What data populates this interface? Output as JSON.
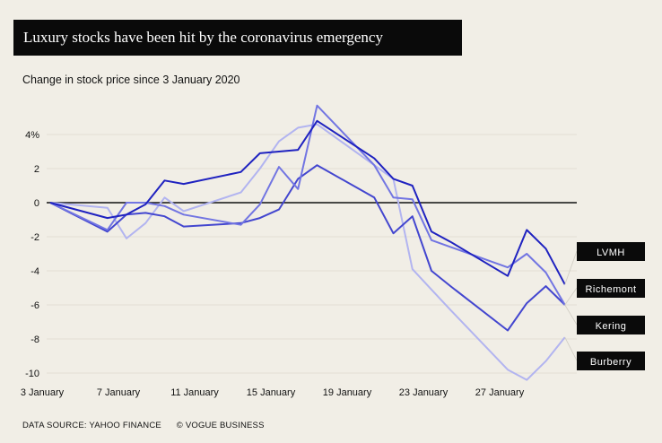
{
  "chart_data": {
    "type": "line",
    "title": "Luxury stocks have been hit by the coronavirus emergency",
    "subtitle": "Change in stock price since 3 January 2020",
    "x": [
      3,
      6,
      7,
      8,
      9,
      10,
      13,
      14,
      15,
      16,
      17,
      20,
      21,
      22,
      23,
      24,
      27,
      28,
      29,
      30
    ],
    "x_unit": "January 2020",
    "xticks": [
      3,
      7,
      11,
      15,
      19,
      23,
      27
    ],
    "xtick_labels": [
      "3 January",
      "7 January",
      "11 January",
      "15 January",
      "19 January",
      "23 January",
      "27 January"
    ],
    "yticks": [
      4,
      2,
      0,
      -2,
      -4,
      -6,
      -8,
      -10
    ],
    "ytick_labels": [
      "4%",
      "2",
      "0",
      "-2",
      "-4",
      "-6",
      "-8",
      "-10"
    ],
    "ylim": [
      -10.5,
      6
    ],
    "grid": true,
    "legend": "labels at line ends, right",
    "series": [
      {
        "name": "LVMH",
        "color": "#1f22c0",
        "values": [
          0,
          -0.9,
          -0.7,
          -0.1,
          1.3,
          1.1,
          1.8,
          2.9,
          3.0,
          3.1,
          4.8,
          2.6,
          1.4,
          1.0,
          -1.7,
          -2.3,
          -4.3,
          -1.6,
          -2.7,
          -4.8
        ]
      },
      {
        "name": "Richemont",
        "color": "#7275e2",
        "values": [
          0,
          -1.6,
          0,
          0,
          -0.2,
          -0.7,
          -1.3,
          -0.1,
          2.1,
          0.8,
          5.7,
          2.2,
          0.3,
          0.2,
          -2.2,
          -2.6,
          -3.8,
          -3.0,
          -4.1,
          -6.0
        ]
      },
      {
        "name": "Kering",
        "color": "#4346cf",
        "values": [
          0,
          -1.7,
          -0.7,
          -0.6,
          -0.8,
          -1.4,
          -1.2,
          -0.9,
          -0.4,
          1.4,
          2.2,
          0.3,
          -1.8,
          -0.8,
          -4.0,
          -4.9,
          -7.5,
          -5.9,
          -4.9,
          -6.0
        ]
      },
      {
        "name": "Burberry",
        "color": "#b2b4f0",
        "values": [
          0,
          -0.3,
          -2.1,
          -1.2,
          0.3,
          -0.5,
          0.6,
          2.0,
          3.6,
          4.4,
          4.6,
          2.2,
          1.4,
          -3.9,
          -5.1,
          -6.3,
          -9.8,
          -10.4,
          -9.3,
          -7.9
        ]
      }
    ]
  },
  "footer": {
    "source": "DATA SOURCE: YAHOO FINANCE",
    "credit": "© VOGUE BUSINESS"
  }
}
